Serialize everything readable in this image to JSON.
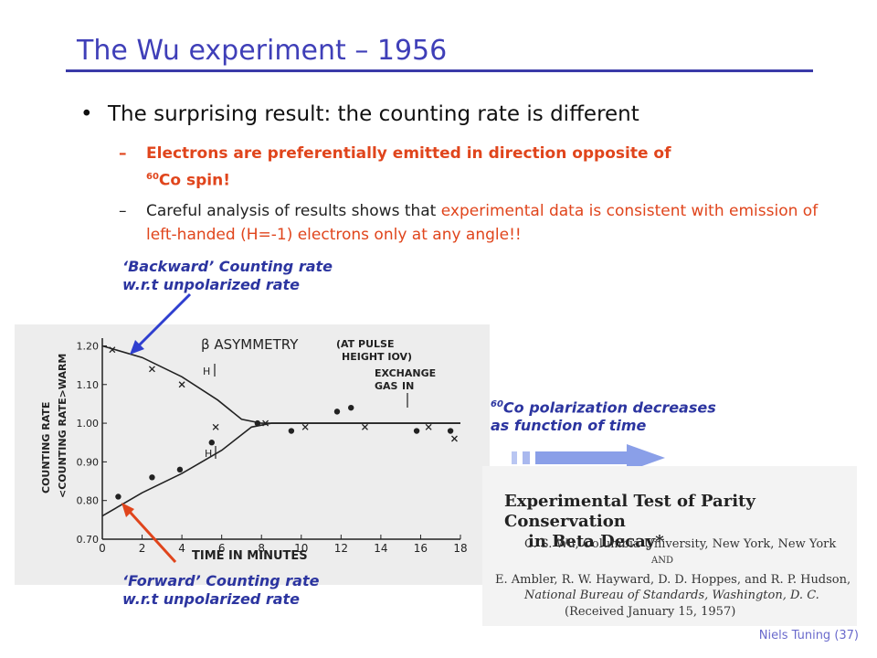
{
  "title": "The Wu experiment – 1956",
  "bullet": {
    "marker": "•",
    "text": "The surprising result: the counting rate is different"
  },
  "sub1": {
    "dash": "–",
    "line1": "Electrons are preferentially emitted in direction opposite of",
    "sup": "60",
    "line2": "Co spin!"
  },
  "sub2": {
    "dash": "–",
    "plain": "Careful analysis of results shows that ",
    "red": "experimental data is consistent with emission of left-handed (H=-1) electrons only at any angle!!"
  },
  "notes": {
    "backward": [
      "‘Backward’ Counting rate",
      "w.r.t unpolarized rate"
    ],
    "forward": [
      "‘Forward’ Counting rate",
      "w.r.t unpolarized rate"
    ],
    "polarization_sup": "60",
    "polarization": [
      "Co polarization decreases",
      "as function of time"
    ]
  },
  "paper": {
    "title": [
      "Experimental Test of Parity Conservation",
      "in Beta Decay*"
    ],
    "author1": "C. S. Wu, Columbia University, New York, New York",
    "and": "AND",
    "authors2": "E. Ambler, R. W. Hayward, D. D. Hoppes, and R. P. Hudson,",
    "affil2": "National Bureau of Standards, Washington, D. C.",
    "received": "(Received January 15, 1957)"
  },
  "footer": "Niels Tuning (37)",
  "colors": {
    "title": "#3f3fb8",
    "red": "#e0451c",
    "note": "#2c35a0",
    "arrow_blue": "#2f3fcf",
    "arrow_red": "#e0451c"
  },
  "chart_data": {
    "type": "scatter",
    "title": "β ASYMMETRY",
    "annotation_pulse": [
      "(AT PULSE",
      "HEIGHT IOV)"
    ],
    "annotation_exchange": [
      "EXCHANGE",
      "GAS",
      "IN"
    ],
    "h_label": "H",
    "xlabel": "TIME IN MINUTES",
    "ylabel_top": "COUNTING RATE",
    "ylabel_bottom": "<COUNTING RATE>WARM",
    "xlim": [
      0,
      18
    ],
    "ylim": [
      0.7,
      1.22
    ],
    "xticks": [
      0,
      2,
      4,
      6,
      8,
      10,
      12,
      14,
      16,
      18
    ],
    "yticks": [
      0.7,
      0.8,
      0.9,
      1.0,
      1.1,
      1.2
    ],
    "ytick_labels": [
      "0.70",
      "0.80",
      "0.90",
      "1.00",
      "1.10",
      "1.20"
    ],
    "series": [
      {
        "marker": "x",
        "points": [
          [
            0.5,
            1.19
          ],
          [
            2.5,
            1.14
          ],
          [
            4,
            1.1
          ],
          [
            5.7,
            0.99
          ],
          [
            8.2,
            1.0
          ],
          [
            10.2,
            0.99
          ],
          [
            13.2,
            0.99
          ],
          [
            16.4,
            0.99
          ],
          [
            17.7,
            0.96
          ]
        ]
      },
      {
        "marker": "dot",
        "points": [
          [
            0.8,
            0.81
          ],
          [
            2.5,
            0.86
          ],
          [
            3.9,
            0.88
          ],
          [
            5.5,
            0.95
          ],
          [
            7.8,
            1.0
          ],
          [
            9.5,
            0.98
          ],
          [
            11.8,
            1.03
          ],
          [
            12.5,
            1.04
          ],
          [
            15.8,
            0.98
          ],
          [
            17.5,
            0.98
          ]
        ]
      }
    ],
    "curves": [
      [
        [
          0,
          1.2
        ],
        [
          2,
          1.17
        ],
        [
          4,
          1.12
        ],
        [
          5.8,
          1.06
        ],
        [
          7,
          1.01
        ],
        [
          8,
          1.0
        ],
        [
          18,
          1.0
        ]
      ],
      [
        [
          0,
          0.76
        ],
        [
          2,
          0.82
        ],
        [
          4,
          0.87
        ],
        [
          6,
          0.93
        ],
        [
          7.5,
          0.99
        ],
        [
          8.5,
          1.0
        ],
        [
          18,
          1.0
        ]
      ]
    ]
  }
}
